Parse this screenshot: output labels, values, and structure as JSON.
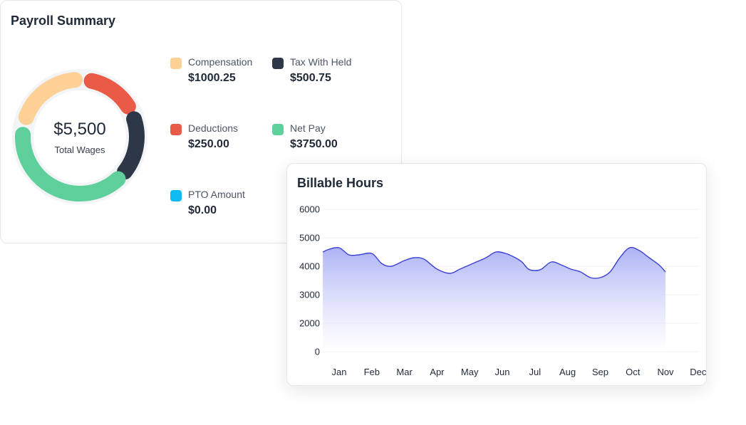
{
  "payroll": {
    "title": "Payroll Summary",
    "total_amount": "$5,500",
    "total_label": "Total Wages",
    "items": [
      {
        "label": "Compensation",
        "value": "$1000.25",
        "color": "#fdd095",
        "icon": "compensation-swatch"
      },
      {
        "label": "Tax With Held",
        "value": "$500.75",
        "color": "#2d3748",
        "icon": "tax-swatch"
      },
      {
        "label": "Deductions",
        "value": "$250.00",
        "color": "#ea5b47",
        "icon": "deductions-swatch"
      },
      {
        "label": "Net Pay",
        "value": "$3750.00",
        "color": "#5fd09c",
        "icon": "net-pay-swatch"
      },
      {
        "label": "PTO Amount",
        "value": "$0.00",
        "color": "#0cbcf5",
        "icon": "pto-swatch"
      }
    ]
  },
  "billable": {
    "title": "Billable Hours",
    "chart_data": {
      "type": "area",
      "title": "Billable Hours",
      "xlabel": "",
      "ylabel": "",
      "categories": [
        "Jan",
        "Feb",
        "Mar",
        "Apr",
        "May",
        "Jun",
        "Jul",
        "Aug",
        "Sep",
        "Oct",
        "Nov",
        "Dec"
      ],
      "ylim": [
        0,
        6000
      ],
      "yticks": [
        0,
        2000,
        3000,
        4000,
        5000,
        6000
      ],
      "x": [
        -0.5,
        -0.3,
        0.0,
        0.3,
        0.6,
        1.0,
        1.3,
        1.6,
        2.0,
        2.3,
        2.6,
        3.0,
        3.4,
        3.7,
        4.1,
        4.5,
        4.8,
        5.1,
        5.4,
        5.6,
        5.8,
        6.0,
        6.2,
        6.5,
        6.8,
        7.1,
        7.4,
        7.7,
        8.0,
        8.3,
        8.6,
        8.9,
        9.2,
        9.5,
        9.8,
        10.0
      ],
      "values": [
        4500,
        4600,
        4650,
        4400,
        4400,
        4450,
        4100,
        4000,
        4200,
        4300,
        4250,
        3900,
        3750,
        3900,
        4100,
        4300,
        4500,
        4450,
        4300,
        4150,
        3900,
        3850,
        3900,
        4150,
        4050,
        3900,
        3800,
        3600,
        3600,
        3800,
        4300,
        4650,
        4550,
        4300,
        4050,
        3800
      ],
      "grid": true,
      "colors": {
        "line": "#3b3fd6",
        "fill_top": "#a9aff5",
        "fill_bottom": "#ffffff"
      }
    }
  }
}
